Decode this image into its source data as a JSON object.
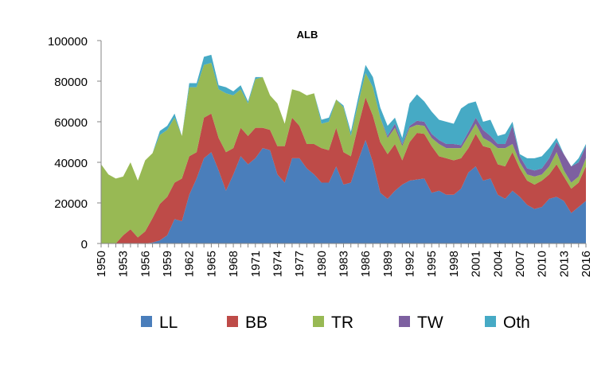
{
  "chart_data": {
    "type": "area",
    "stacked": true,
    "title": "ALB",
    "xlabel": "",
    "ylabel": "",
    "ylim": [
      0,
      100000
    ],
    "yticks": [
      "0",
      "20000",
      "40000",
      "60000",
      "80000",
      "100000"
    ],
    "xtick_labels": [
      "1950",
      "1953",
      "1956",
      "1959",
      "1962",
      "1965",
      "1968",
      "1971",
      "1974",
      "1977",
      "1980",
      "1983",
      "1986",
      "1989",
      "1992",
      "1995",
      "1998",
      "2001",
      "2004",
      "2007",
      "2010",
      "2013",
      "2016"
    ],
    "legend_position": "bottom",
    "x": [
      1950,
      1951,
      1952,
      1953,
      1954,
      1955,
      1956,
      1957,
      1958,
      1959,
      1960,
      1961,
      1962,
      1963,
      1964,
      1965,
      1966,
      1967,
      1968,
      1969,
      1970,
      1971,
      1972,
      1973,
      1974,
      1975,
      1976,
      1977,
      1978,
      1979,
      1980,
      1981,
      1982,
      1983,
      1984,
      1985,
      1986,
      1987,
      1988,
      1989,
      1990,
      1991,
      1992,
      1993,
      1994,
      1995,
      1996,
      1997,
      1998,
      1999,
      2000,
      2001,
      2002,
      2003,
      2004,
      2005,
      2006,
      2007,
      2008,
      2009,
      2010,
      2011,
      2012,
      2013,
      2014,
      2015,
      2016
    ],
    "series": [
      {
        "name": "LL",
        "color": "#4a7ebb",
        "values": [
          0,
          0,
          0,
          0,
          0,
          0,
          0,
          500,
          1500,
          4000,
          12000,
          11000,
          24000,
          32000,
          42000,
          45000,
          36000,
          26000,
          34000,
          43000,
          39000,
          42000,
          47000,
          46000,
          34000,
          30000,
          42000,
          42000,
          37000,
          34000,
          30000,
          30000,
          38000,
          29000,
          30000,
          41000,
          51000,
          40000,
          25000,
          22000,
          26000,
          29000,
          31000,
          31500,
          32000,
          25000,
          26000,
          24000,
          24000,
          27000,
          35000,
          38000,
          31000,
          32000,
          24000,
          22000,
          26000,
          23000,
          19000,
          17000,
          18000,
          22000,
          23000,
          21000,
          15000,
          18000,
          21000
        ]
      },
      {
        "name": "BB",
        "color": "#be4b48",
        "values": [
          0,
          0,
          0,
          4000,
          7000,
          3000,
          6000,
          12000,
          18000,
          19000,
          18000,
          21000,
          19000,
          13000,
          20000,
          19000,
          16000,
          19000,
          13000,
          14000,
          14000,
          15000,
          10000,
          10000,
          14000,
          18000,
          20000,
          16000,
          12000,
          15000,
          17000,
          16000,
          19000,
          16000,
          13000,
          17000,
          21000,
          23000,
          25000,
          22000,
          23000,
          12000,
          19000,
          23000,
          22000,
          23000,
          17000,
          18000,
          17000,
          15000,
          12000,
          16000,
          17000,
          15000,
          15000,
          16000,
          19000,
          14000,
          12000,
          12000,
          13000,
          12000,
          16000,
          12000,
          12000,
          12000,
          17000
        ]
      },
      {
        "name": "TR",
        "color": "#98b954",
        "values": [
          39000,
          34000,
          32000,
          29000,
          33000,
          28000,
          35000,
          32000,
          34000,
          33000,
          32000,
          21000,
          34000,
          32000,
          26000,
          25000,
          24000,
          29000,
          26000,
          19000,
          16000,
          24000,
          25000,
          17000,
          21000,
          11000,
          14000,
          17000,
          24000,
          25000,
          12000,
          14000,
          14000,
          22000,
          10000,
          11000,
          12000,
          14000,
          12000,
          8000,
          8000,
          7000,
          7000,
          4000,
          4000,
          4000,
          6000,
          5000,
          6000,
          5000,
          6000,
          5000,
          4000,
          3000,
          8000,
          9000,
          4000,
          3000,
          3000,
          4000,
          3000,
          4000,
          6000,
          3000,
          3000,
          3000,
          4000
        ]
      },
      {
        "name": "TW",
        "color": "#7d60a0",
        "values": [
          0,
          0,
          0,
          0,
          0,
          0,
          0,
          0,
          0,
          0,
          0,
          0,
          0,
          0,
          0,
          0,
          0,
          0,
          0,
          0,
          0,
          0,
          0,
          0,
          0,
          0,
          0,
          0,
          0,
          0,
          0,
          0,
          0,
          0,
          0,
          0,
          0,
          0,
          0,
          1000,
          2000,
          1000,
          1000,
          2000,
          2000,
          2000,
          2000,
          2000,
          2000,
          1500,
          2000,
          3000,
          4000,
          3000,
          2000,
          2000,
          9000,
          3000,
          3000,
          3000,
          3000,
          4000,
          5000,
          8000,
          8000,
          7000,
          6000
        ]
      },
      {
        "name": "Oth",
        "color": "#46aac5",
        "values": [
          0,
          0,
          0,
          0,
          0,
          0,
          0,
          0,
          2000,
          2000,
          2000,
          0,
          2000,
          2000,
          4000,
          4000,
          2000,
          3000,
          2000,
          2000,
          1000,
          1000,
          0,
          0,
          0,
          0,
          0,
          0,
          0,
          0,
          2000,
          2000,
          0,
          1000,
          2000,
          3000,
          4000,
          5000,
          5000,
          5000,
          3000,
          3000,
          11000,
          13000,
          10000,
          11000,
          10000,
          11000,
          10000,
          18000,
          14000,
          8000,
          4000,
          8000,
          4000,
          5000,
          2000,
          1000,
          5000,
          6000,
          6000,
          5000,
          2000,
          0,
          0,
          2000,
          1000
        ]
      }
    ]
  }
}
